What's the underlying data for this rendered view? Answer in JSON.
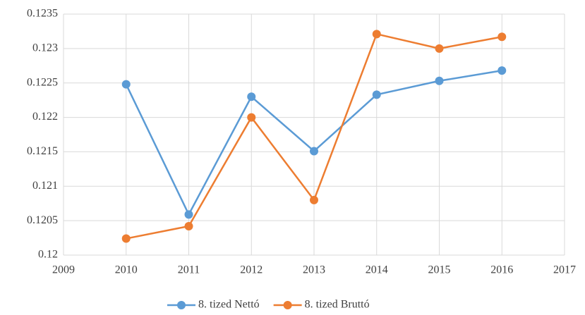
{
  "chart_data": {
    "type": "line",
    "x": [
      2010,
      2011,
      2012,
      2013,
      2014,
      2015,
      2016
    ],
    "series": [
      {
        "name": "8. tized Nettó",
        "color": "#5b9bd5",
        "values": [
          0.12248,
          0.12059,
          0.1223,
          0.12151,
          0.12233,
          0.12253,
          0.12268
        ]
      },
      {
        "name": "8. tized Bruttó",
        "color": "#ed7d31",
        "values": [
          0.12024,
          0.12042,
          0.122,
          0.1208,
          0.12321,
          0.123,
          0.12317
        ]
      }
    ],
    "xlim": [
      2009,
      2017
    ],
    "xticks": [
      2009,
      2010,
      2011,
      2012,
      2013,
      2014,
      2015,
      2016,
      2017
    ],
    "ylim": [
      0.12,
      0.1235
    ],
    "yticks": [
      0.12,
      0.1205,
      0.121,
      0.1215,
      0.122,
      0.1225,
      0.123,
      0.1235
    ],
    "grid": true,
    "legend": "bottom"
  }
}
